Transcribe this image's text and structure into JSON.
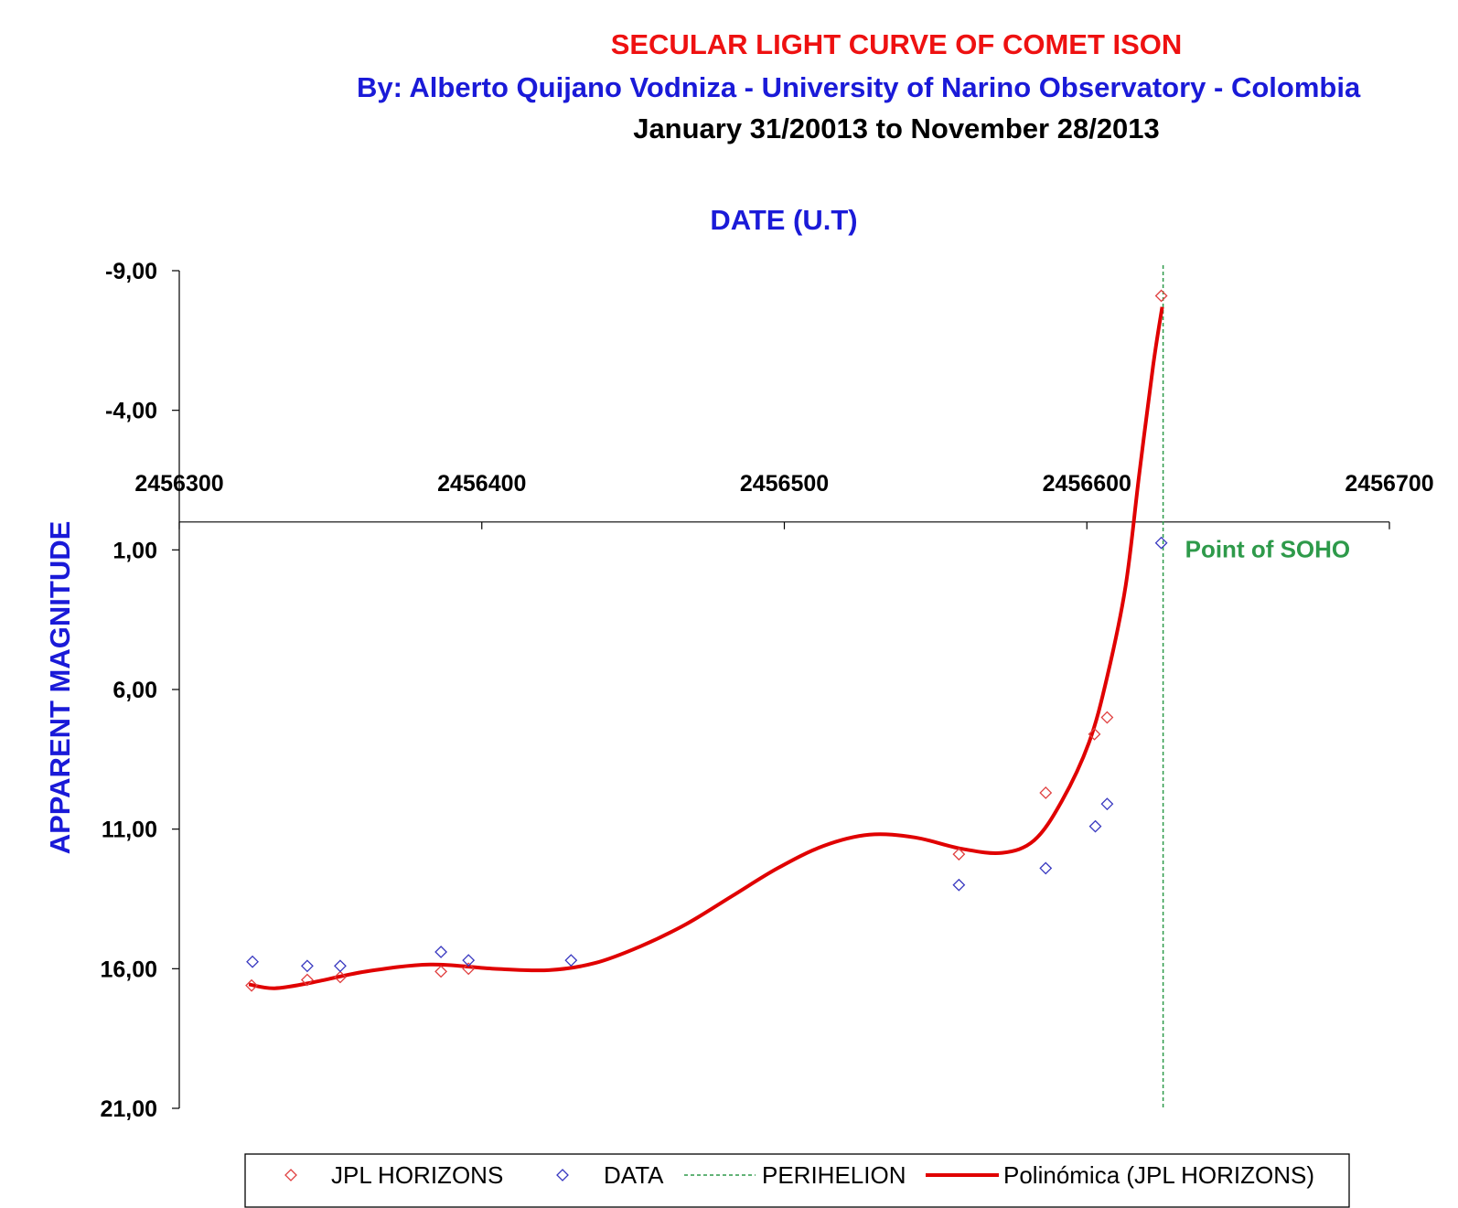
{
  "chart_data": {
    "type": "scatter",
    "title": "SECULAR LIGHT CURVE OF COMET ISON",
    "subtitle": "By: Alberto Quijano Vodniza - University of Narino Observatory - Colombia",
    "date_range": "January 31/20013  to  November 28/2013",
    "x_label": "DATE (U.T)",
    "y_label": "APPARENT  MAGNITUDE",
    "xlim": [
      2456300,
      2456700
    ],
    "xticks": [
      2456300,
      2456400,
      2456500,
      2456600,
      2456700
    ],
    "ylim": [
      -9,
      21
    ],
    "y_inverted": true,
    "yticks": [
      {
        "value": -9,
        "label": "-9,00"
      },
      {
        "value": -4,
        "label": "-4,00"
      },
      {
        "value": 1,
        "label": "1,00"
      },
      {
        "value": 6,
        "label": "6,00"
      },
      {
        "value": 11,
        "label": "11,00"
      },
      {
        "value": 16,
        "label": "16,00"
      },
      {
        "value": 21,
        "label": "21,00"
      }
    ],
    "series": [
      {
        "name": "JPL HORIZONS",
        "color": "#e04040",
        "marker": "diamond",
        "x": [
          2456323.9,
          2456342.3,
          2456353.2,
          2456386.5,
          2456395.6,
          2456557.7,
          2456586.4,
          2456602.5,
          2456606.7,
          2456624.6
        ],
        "values": [
          16.6,
          16.4,
          16.3,
          16.1,
          16.0,
          11.9,
          9.7,
          7.6,
          7.0,
          -8.1
        ]
      },
      {
        "name": "DATA",
        "color": "#3838c0",
        "marker": "diamond",
        "x": [
          2456324.2,
          2456342.3,
          2456353.2,
          2456386.5,
          2456395.6,
          2456429.5,
          2456557.7,
          2456586.4,
          2456602.8,
          2456606.7,
          2456624.6
        ],
        "values": [
          15.75,
          15.9,
          15.9,
          15.4,
          15.7,
          15.7,
          13.0,
          12.4,
          10.9,
          10.1,
          0.75
        ]
      },
      {
        "name": "Polinómica (JPL HORIZONS)",
        "color": "#e00000",
        "marker": "line",
        "x": [
          2456323,
          2456331.5,
          2456343.6,
          2456361.7,
          2456382.9,
          2456404,
          2456422.2,
          2456437.3,
          2456452.4,
          2456467.6,
          2456482.7,
          2456497.8,
          2456513,
          2456528.1,
          2456543.2,
          2456558.4,
          2456572,
          2456582.6,
          2456591.7,
          2456600.7,
          2456606.7,
          2456612.8,
          2456617.3,
          2456621.9,
          2456624.9
        ],
        "values": [
          16.56,
          16.7,
          16.5,
          16.1,
          15.85,
          16.0,
          16.05,
          15.8,
          15.2,
          14.4,
          13.4,
          12.4,
          11.6,
          11.2,
          11.3,
          11.7,
          11.85,
          11.4,
          10.0,
          7.9,
          5.55,
          2.3,
          -1.7,
          -5.6,
          -7.7
        ]
      }
    ],
    "vlines": [
      {
        "name": "PERIHELION",
        "x": 2456625.2,
        "color": "#2e9a4a"
      }
    ],
    "annotation": {
      "text": "Point of SOHO",
      "color": "#2e9a4a"
    }
  }
}
